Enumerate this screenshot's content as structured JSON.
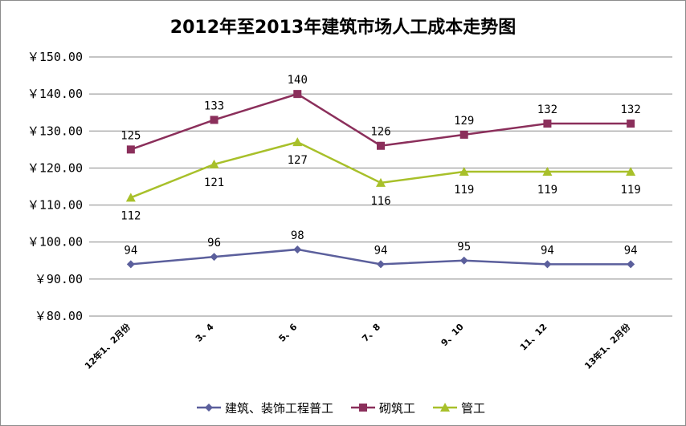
{
  "chart_data": {
    "type": "line",
    "title": "2012年至2013年建筑市场人工成本走势图",
    "categories": [
      "12年1、2月份",
      "3、4",
      "5、6",
      "7、8",
      "9、10",
      "11、12",
      "13年1、2月份"
    ],
    "ylim": [
      80,
      150
    ],
    "yticks": [
      "￥150.00",
      "￥140.00",
      "￥130.00",
      "￥120.00",
      "￥110.00",
      "￥100.00",
      "￥90.00",
      "￥80.00"
    ],
    "ytick_values": [
      150,
      140,
      130,
      120,
      110,
      100,
      90,
      80
    ],
    "grid": true,
    "legend_position": "bottom",
    "series": [
      {
        "name": "建筑、装饰工程普工",
        "values": [
          94,
          96,
          98,
          94,
          95,
          94,
          94
        ],
        "color": "#5b5f9c",
        "marker": "diamond",
        "label_pos": "above"
      },
      {
        "name": "砌筑工",
        "values": [
          125,
          133,
          140,
          126,
          129,
          132,
          132
        ],
        "color": "#8b2f5b",
        "marker": "square",
        "label_pos": "above"
      },
      {
        "name": "管工",
        "values": [
          112,
          121,
          127,
          116,
          119,
          119,
          119
        ],
        "color": "#a8c02a",
        "marker": "triangle",
        "label_pos": "below"
      }
    ]
  }
}
